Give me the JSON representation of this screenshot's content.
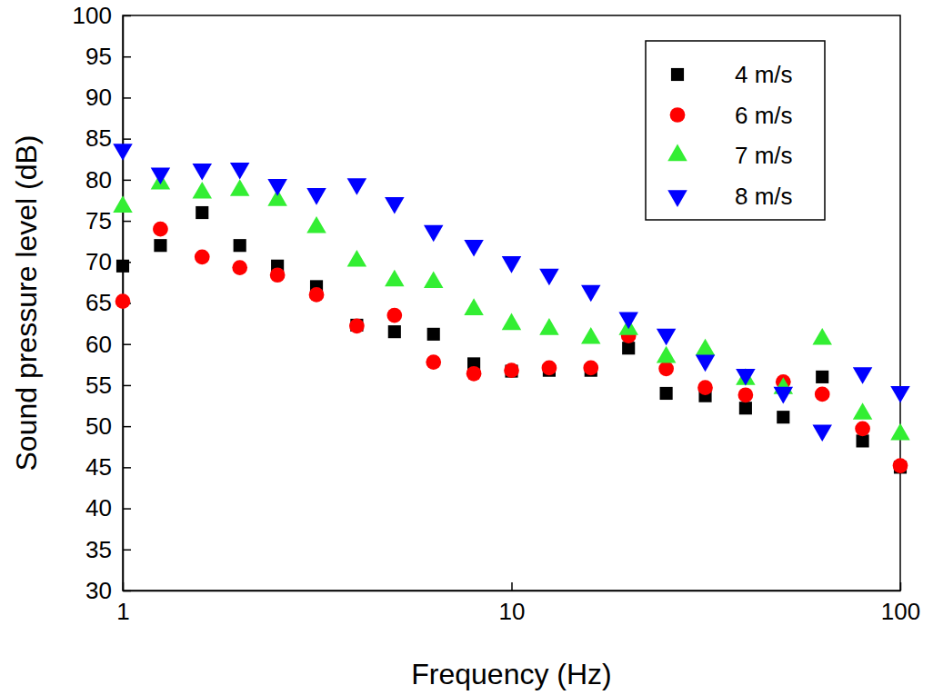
{
  "chart_data": {
    "type": "scatter",
    "x_label": "Frequency (Hz)",
    "y_label": "Sound pressure level (dB)",
    "x": [
      1,
      1.25,
      1.6,
      2,
      2.5,
      3.15,
      4,
      5,
      6.3,
      8,
      10,
      12.5,
      16,
      20,
      25,
      31.5,
      40,
      50,
      63,
      80,
      100
    ],
    "series": [
      {
        "name": "4 m/s",
        "color": "#000000",
        "marker": "square",
        "values": [
          69.5,
          72,
          76,
          72,
          69.5,
          67,
          62.3,
          61.5,
          61.2,
          57.6,
          56.7,
          56.8,
          56.8,
          59.5,
          54,
          53.7,
          52.2,
          51.1,
          56,
          48.2,
          45
        ]
      },
      {
        "name": "6 m/s",
        "color": "#ff0000",
        "marker": "circle",
        "values": [
          65.2,
          74,
          70.6,
          69.3,
          68.4,
          66,
          62.2,
          63.5,
          57.8,
          56.4,
          56.8,
          57.1,
          57.1,
          61,
          57,
          54.7,
          53.8,
          55.4,
          53.9,
          49.7,
          45.2
        ]
      },
      {
        "name": "7 m/s",
        "color": "#33ee33",
        "marker": "triangle-up",
        "values": [
          76.7,
          79.5,
          78.4,
          78.7,
          77.5,
          74.2,
          70.1,
          67.7,
          67.5,
          64.2,
          62.4,
          61.8,
          60.7,
          61.8,
          58.4,
          59.3,
          55.7,
          54.6,
          60.6,
          51.5,
          49
        ]
      },
      {
        "name": "8 m/s",
        "color": "#0000ff",
        "marker": "triangle-down",
        "values": [
          83.7,
          80.8,
          81.3,
          81.4,
          79.4,
          78.3,
          79.5,
          77.2,
          73.8,
          72,
          70,
          68.5,
          66.5,
          63.2,
          61.2,
          58,
          56.3,
          54.1,
          49.5,
          56.5,
          54.2
        ]
      }
    ],
    "log": "x",
    "xlim": [
      1,
      100
    ],
    "xticks": [
      1,
      10,
      100
    ],
    "ylim": [
      30,
      100
    ],
    "yticks": [
      30,
      35,
      40,
      45,
      50,
      55,
      60,
      65,
      70,
      75,
      80,
      85,
      90,
      95,
      100
    ],
    "grid": false,
    "legend": "upper right"
  }
}
